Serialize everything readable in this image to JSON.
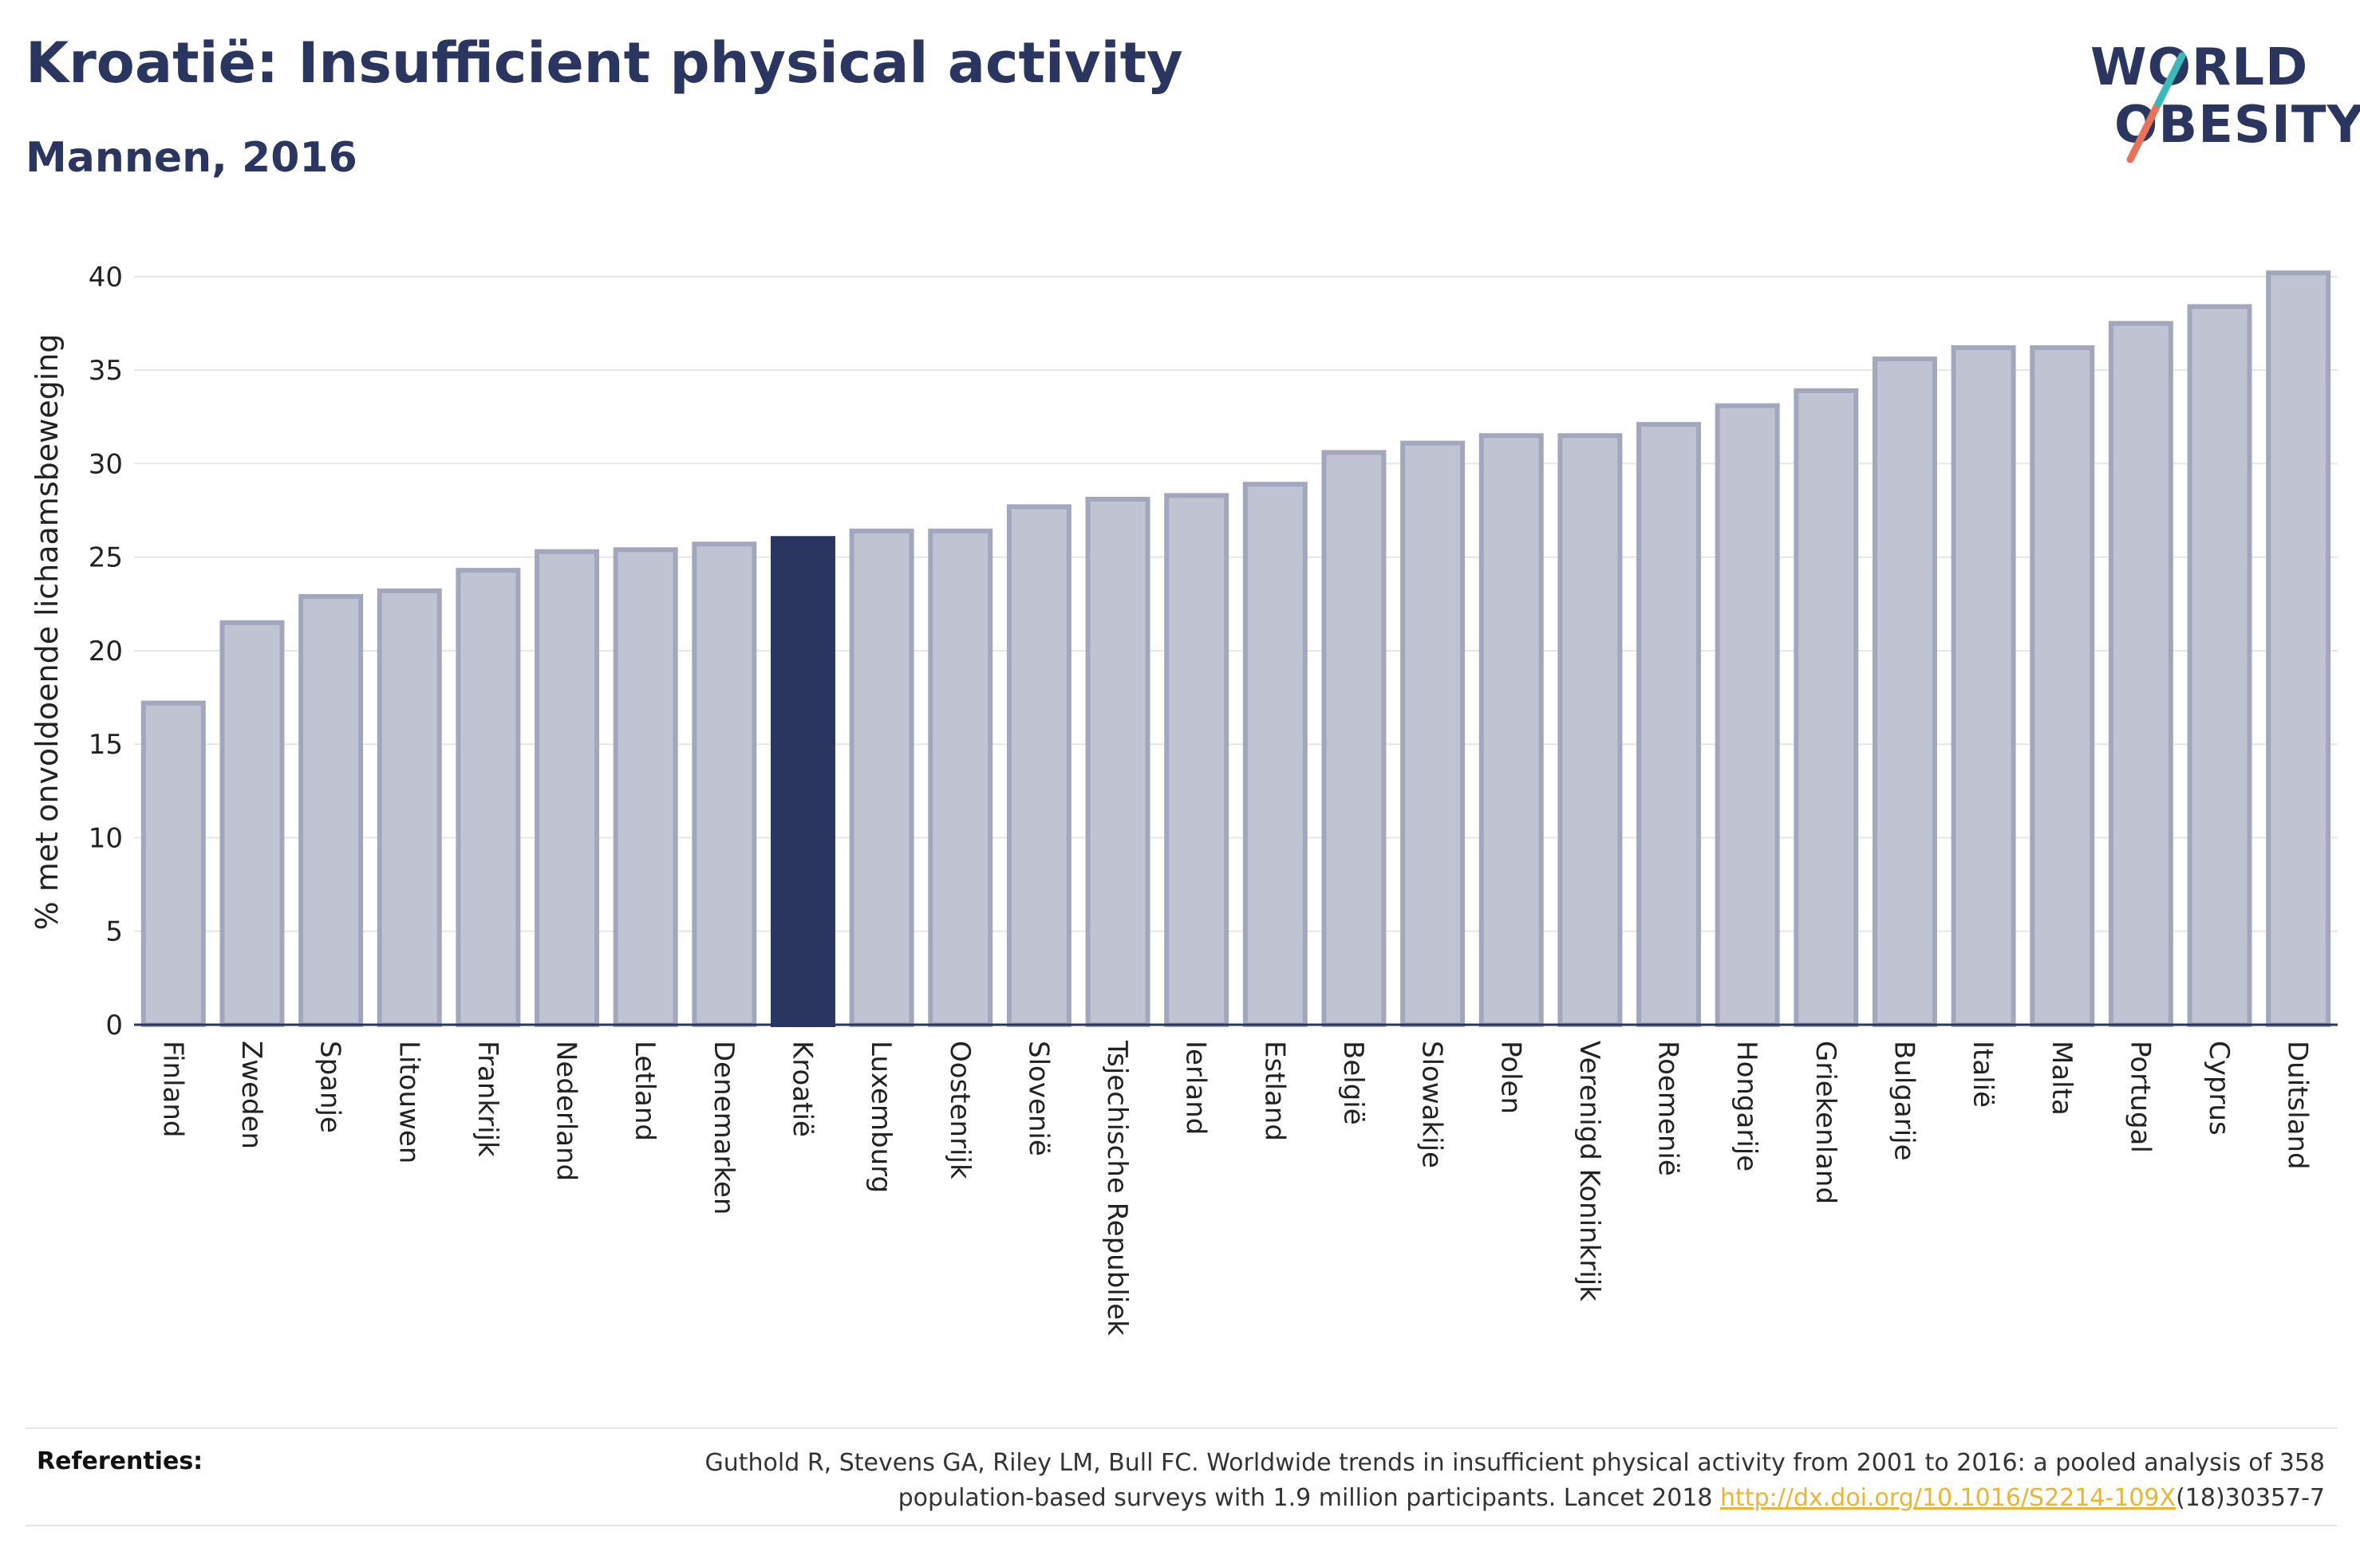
{
  "header": {
    "title": "Kroatië: Insufficient physical activity",
    "subtitle": "Mannen, 2016"
  },
  "logo": {
    "line1": "WORLD",
    "line2": "OBESITY",
    "accent_colors": [
      "#e8735a",
      "#3bb8b8"
    ]
  },
  "colors": {
    "bar": "#c0c3d1",
    "bar_border": "#a3a7bd",
    "highlight": "#2a3560",
    "text": "#2a3560",
    "grid": "#e6e6e6",
    "link": "#e8b634"
  },
  "chart_data": {
    "type": "bar",
    "title": "",
    "xlabel": "",
    "ylabel": "% met onvoldoende lichaamsbeweging",
    "ylim": [
      0,
      42
    ],
    "yticks": [
      0,
      5,
      10,
      15,
      20,
      25,
      30,
      35,
      40
    ],
    "grid": true,
    "highlight": "Kroatië",
    "categories": [
      "Finland",
      "Zweden",
      "Spanje",
      "Litouwen",
      "Frankrijk",
      "Nederland",
      "Letland",
      "Denemarken",
      "Kroatië",
      "Luxemburg",
      "Oostenrijk",
      "Slovenië",
      "Tsjechische Republiek",
      "Ierland",
      "Estland",
      "België",
      "Slowakije",
      "Polen",
      "Verenigd Koninkrijk",
      "Roemenië",
      "Hongarije",
      "Griekenland",
      "Bulgarije",
      "Italië",
      "Malta",
      "Portugal",
      "Cyprus",
      "Duitsland"
    ],
    "values": [
      17.2,
      21.5,
      22.9,
      23.2,
      24.3,
      25.3,
      25.4,
      25.7,
      26.0,
      26.4,
      26.4,
      27.7,
      28.1,
      28.3,
      28.9,
      30.6,
      31.1,
      31.5,
      31.5,
      32.1,
      33.1,
      33.9,
      35.6,
      36.2,
      36.2,
      37.5,
      38.4,
      40.2
    ]
  },
  "references": {
    "label": "Referenties:",
    "text_line1": "Guthold R, Stevens GA, Riley LM, Bull FC. Worldwide trends in insufficient physical activity from 2001 to 2016: a pooled analysis of 358",
    "text_line2_before": "population-based surveys with 1.9 million participants. Lancet 2018 ",
    "link": "http://dx.doi.org/10.1016/S2214-109X",
    "text_line2_after": "(18)30357-7"
  }
}
